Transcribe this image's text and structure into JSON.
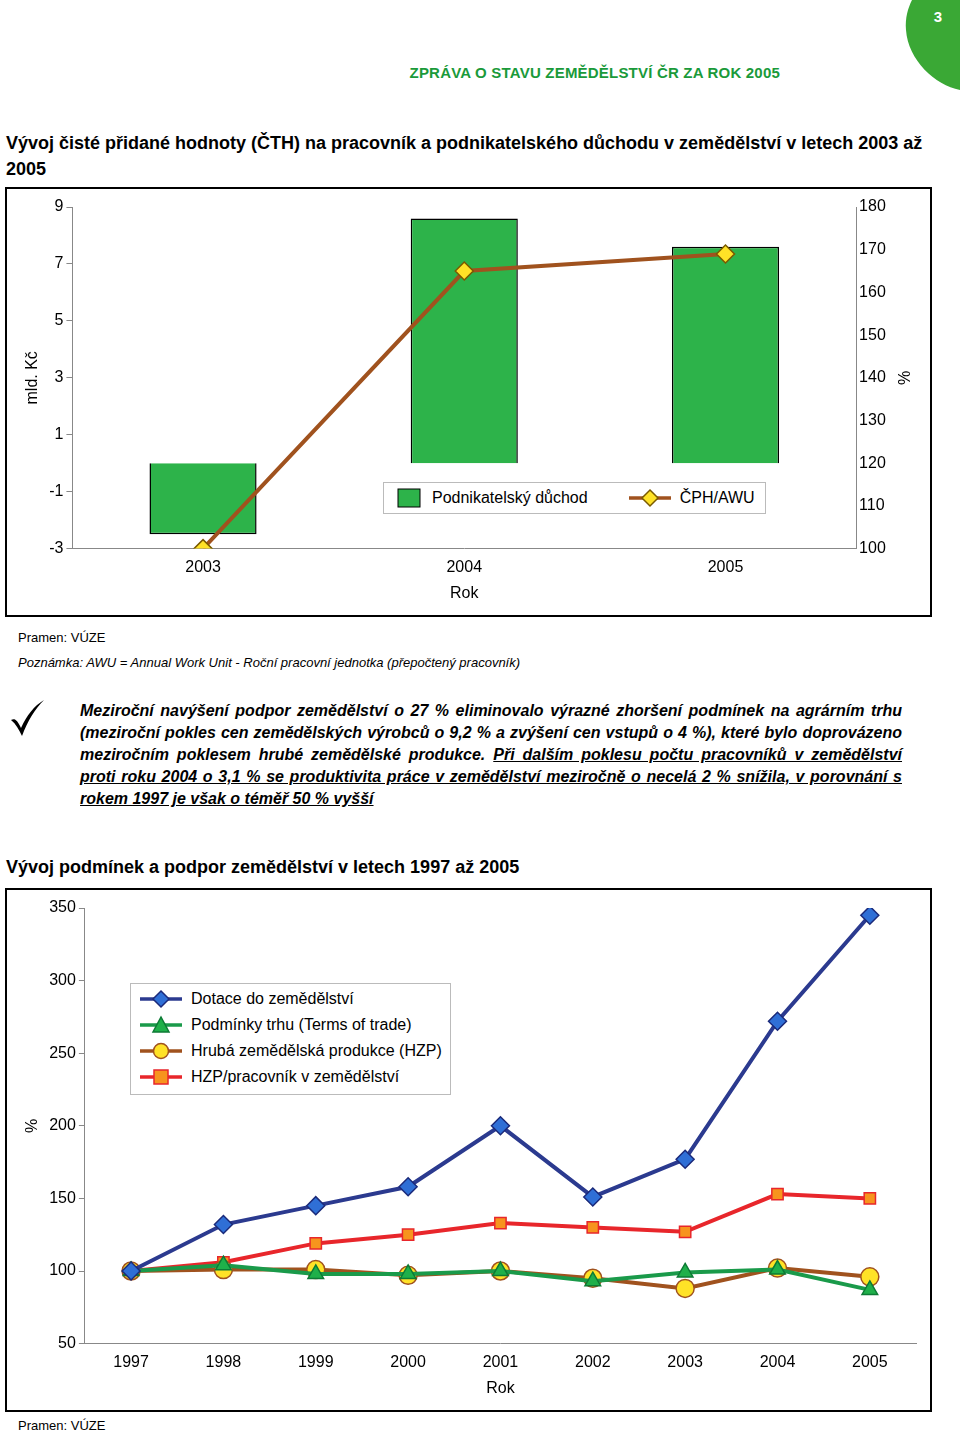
{
  "document": {
    "header": "ZPRÁVA O STAVU ZEMĚDĚLSTVÍ ČR ZA ROK 2005",
    "page_number": "3",
    "title1": "Vývoj čisté přidané hodnoty (ČTH) na pracovník a podnikatelského důchodu v zemědělství v letech 2003 až 2005",
    "source1": "Pramen: VÚZE",
    "note1": "Poznámka: AWU = Annual Work Unit - Roční pracovní jednotka (přepočtený pracovník)",
    "paragraph": [
      "Meziroční navýšení podpor zemědělství o 27 % eliminovalo výrazné zhoršení podmínek na agrárním trhu (meziroční pokles cen zemědělských výrobců o 9,2 % a zvýšení cen vstupů o 4 %), které bylo doprovázeno meziročním poklesem hrubé zemědělské produkce.",
      "Při dalším poklesu počtu pracovníků v zemědělství proti roku 2004 o 3,1 % se produktivita práce v zemědělství meziročně o necelá 2 % snížila, v porovnání s rokem 1997 je však o téměř 50 % vyšší"
    ],
    "title2": "Vývoj podmínek a podpor zemědělství v letech 1997 až 2005",
    "source2": "Pramen: VÚZE"
  },
  "chart_data": [
    {
      "type": "bar",
      "x_label": "Rok",
      "y_label": "mld. Kč",
      "y2_label": "%",
      "categories": [
        "2003",
        "2004",
        "2005"
      ],
      "series": [
        {
          "name": "Podnikatelský důchod",
          "type": "bar",
          "color": "#2db34a",
          "values": [
            -2.5,
            8.6,
            7.6
          ]
        },
        {
          "name": "ČPH/AWU",
          "type": "line",
          "axis": "y2",
          "color": "#a0521e",
          "marker": "diamond",
          "values": [
            100,
            165,
            169
          ]
        }
      ],
      "ylim": [
        -3,
        9
      ],
      "yticks": [
        -3,
        -1,
        1,
        3,
        5,
        7,
        9
      ],
      "y2lim": [
        100,
        180
      ],
      "y2ticks": [
        100,
        110,
        120,
        130,
        140,
        150,
        160,
        170,
        180
      ],
      "grid": false,
      "legend": "bottom"
    },
    {
      "type": "line",
      "x_label": "Rok",
      "y_label": "%",
      "categories": [
        "1997",
        "1998",
        "1999",
        "2000",
        "2001",
        "2002",
        "2003",
        "2004",
        "2005"
      ],
      "series": [
        {
          "name": "Dotace do zemědělství",
          "color": "#2b3a8f",
          "marker": "diamond",
          "values": [
            100,
            132,
            145,
            158,
            200,
            151,
            177,
            272,
            345
          ]
        },
        {
          "name": "Podmínky trhu (Terms of trade)",
          "color": "#1a9a4a",
          "marker": "triangle",
          "values": [
            100,
            104,
            98,
            98,
            100,
            93,
            99,
            101,
            87
          ]
        },
        {
          "name": "Hrubá zemědělská produkce (HZP)",
          "color": "#a0521e",
          "marker": "circle",
          "values": [
            100,
            101,
            101,
            97,
            100,
            95,
            88,
            102,
            96
          ]
        },
        {
          "name": "HZP/pracovník v zemědělství",
          "color": "#e8262b",
          "marker": "square",
          "values": [
            100,
            106,
            119,
            125,
            133,
            130,
            127,
            153,
            150
          ]
        }
      ],
      "ylim": [
        50,
        350
      ],
      "yticks": [
        50,
        100,
        150,
        200,
        250,
        300,
        350
      ],
      "grid": false,
      "legend": "top-left"
    }
  ]
}
